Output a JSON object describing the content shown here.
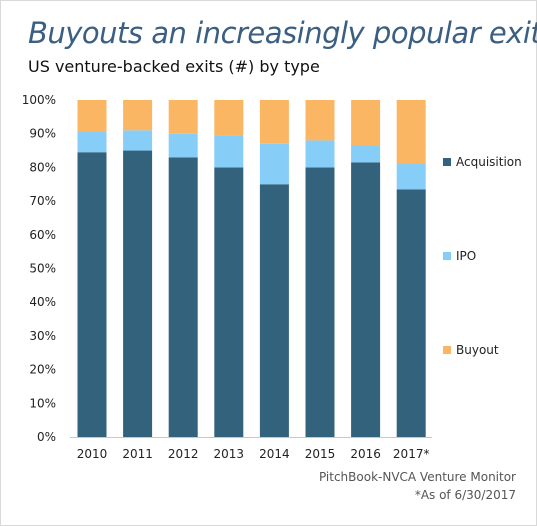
{
  "header": {
    "title": "Buyouts an increasingly popular exit",
    "subtitle": "US venture-backed exits (#) by type"
  },
  "footer": {
    "source": "PitchBook-NVCA Venture Monitor",
    "note": "*As of 6/30/2017"
  },
  "chart_data": {
    "type": "bar",
    "stacked": true,
    "percent": true,
    "categories": [
      "2010",
      "2011",
      "2012",
      "2013",
      "2014",
      "2015",
      "2016",
      "2017*"
    ],
    "series": [
      {
        "name": "Acquisition",
        "color": "#33627d",
        "values": [
          84.5,
          85.0,
          83.0,
          80.0,
          75.0,
          80.0,
          81.5,
          73.5
        ]
      },
      {
        "name": "IPO",
        "color": "#86cdf8",
        "values": [
          6.0,
          6.0,
          7.0,
          9.5,
          12.0,
          8.0,
          5.0,
          7.5
        ]
      },
      {
        "name": "Buyout",
        "color": "#fbb664",
        "values": [
          9.5,
          9.0,
          10.0,
          10.5,
          13.0,
          12.0,
          13.5,
          19.0
        ]
      }
    ],
    "ylim": [
      0,
      100
    ],
    "yticks": [
      "0%",
      "10%",
      "20%",
      "30%",
      "40%",
      "50%",
      "60%",
      "70%",
      "80%",
      "90%",
      "100%"
    ],
    "legend_position": "right",
    "grid": false
  }
}
